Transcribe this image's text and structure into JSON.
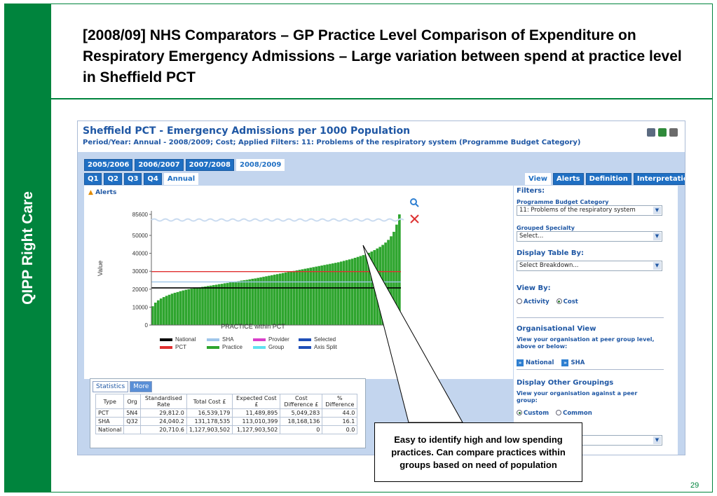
{
  "slide": {
    "title": "[2008/09] NHS Comparators – GP Practice Level Comparison of Expenditure on Respiratory Emergency Admissions – Large variation between spend at practice level in Sheffield PCT",
    "sidebar_label": "QIPP Right Care",
    "page_number": "29",
    "callout": "Easy to identify high and low spending practices.  Can compare practices within groups based on need of population",
    "colors": {
      "green": "#00843d",
      "title_blue": "#1f57a4"
    }
  },
  "screenshot": {
    "title": "Sheffield PCT - Emergency Admissions per 1000 Population",
    "subtitle": "Period/Year: Annual - 2008/2009; Cost; Applied Filters: 11: Problems of the respiratory system (Programme Budget Category)",
    "toolbar_icons": [
      "save-icon",
      "excel-icon",
      "print-icon"
    ],
    "year_tabs": [
      "2005/2006",
      "2006/2007",
      "2007/2008",
      "2008/2009"
    ],
    "active_year": "2008/2009",
    "period_tabs": [
      "Q1",
      "Q2",
      "Q3",
      "Q4",
      "Annual"
    ],
    "active_period": "Annual",
    "view_tabs": [
      "View",
      "Alerts",
      "Definition",
      "Interpretation"
    ],
    "active_view_tab": "View",
    "alerts_link": "Alerts",
    "chart_tool_icons": [
      "zoom-icon",
      "reset-icon"
    ]
  },
  "chart_data": {
    "type": "bar",
    "xlabel": "PRACTICE within PCT",
    "ylabel": "Value",
    "y_ticks": [
      0,
      10000,
      20000,
      30000,
      40000,
      50000,
      85600
    ],
    "y_tick_labels": [
      "0",
      "10000",
      "20000",
      "30000",
      "40000",
      "50000",
      "85600"
    ],
    "axis_split": true,
    "bar_count": 90,
    "values": [
      10500,
      12500,
      13800,
      14800,
      15600,
      16300,
      16900,
      17500,
      18000,
      18400,
      18900,
      19300,
      19700,
      20000,
      20300,
      20600,
      20800,
      21000,
      21300,
      21500,
      21800,
      22000,
      22300,
      22500,
      22800,
      23000,
      23300,
      23500,
      23800,
      24000,
      24300,
      24500,
      24800,
      25000,
      25200,
      25500,
      25800,
      26000,
      26300,
      26600,
      26900,
      27200,
      27500,
      27800,
      28100,
      28400,
      28700,
      29000,
      29300,
      29600,
      29900,
      30200,
      30500,
      30800,
      31100,
      31400,
      31700,
      32000,
      32300,
      32600,
      32900,
      33200,
      33500,
      33800,
      34100,
      34400,
      34700,
      35000,
      35400,
      35800,
      36200,
      36600,
      37000,
      37500,
      38000,
      38500,
      39000,
      39600,
      40300,
      41000,
      41800,
      42700,
      43600,
      44700,
      46000,
      47500,
      49500,
      52000,
      56000,
      85600
    ],
    "reference_lines": [
      {
        "name": "National",
        "value": 20710.6,
        "color": "#000000"
      },
      {
        "name": "SHA",
        "value": 24040.2,
        "color": "#9ec6ea"
      },
      {
        "name": "PCT",
        "value": 29812.0,
        "color": "#e03030"
      }
    ],
    "legend": [
      {
        "name": "National",
        "color": "#000000"
      },
      {
        "name": "SHA",
        "color": "#9ec6ea"
      },
      {
        "name": "Provider",
        "color": "#d93fc9"
      },
      {
        "name": "Selected",
        "color": "#1f4fb8"
      },
      {
        "name": "PCT",
        "color": "#e03030"
      },
      {
        "name": "Practice",
        "color": "#2ea52e"
      },
      {
        "name": "Group",
        "color": "#5fe1f0"
      },
      {
        "name": "Axis Split",
        "color": "#1f4fb8"
      }
    ],
    "legend_placement": "bottom",
    "grid": false
  },
  "stats": {
    "tabs": [
      "Statistics",
      "More"
    ],
    "columns": [
      "Type",
      "Org",
      "Standardised Rate",
      "Total Cost £",
      "Expected Cost £",
      "Cost Difference £",
      "% Difference"
    ],
    "rows": [
      [
        "PCT",
        "5N4",
        "29,812.0",
        "16,539,179",
        "11,489,895",
        "5,049,283",
        "44.0"
      ],
      [
        "SHA",
        "Q32",
        "24,040.2",
        "131,178,535",
        "113,010,399",
        "18,168,136",
        "16.1"
      ],
      [
        "National",
        "",
        "20,710.6",
        "1,127,903,502",
        "1,127,903,502",
        "0",
        "0.0"
      ]
    ]
  },
  "filters": {
    "heading": "Filters:",
    "programme_budget_label": "Programme Budget Category",
    "programme_budget_value": "11: Problems of the respiratory system",
    "grouped_specialty_label": "Grouped Specialty",
    "grouped_specialty_value": "Select...",
    "display_table_label": "Display Table By:",
    "display_table_value": "Select Breakdown...",
    "view_by_label": "View By:",
    "view_by_options": [
      "Activity",
      "Cost"
    ],
    "view_by_selected": "Cost",
    "org_view_label": "Organisational View",
    "org_view_desc": "View your organisation at peer group level, above or below:",
    "org_links": [
      "National",
      "SHA"
    ],
    "other_groupings_label": "Display Other Groupings",
    "other_groupings_desc": "View your organisation against a peer group:",
    "grouping_options": [
      "Custom",
      "Common"
    ],
    "grouping_selected": "Custom"
  }
}
